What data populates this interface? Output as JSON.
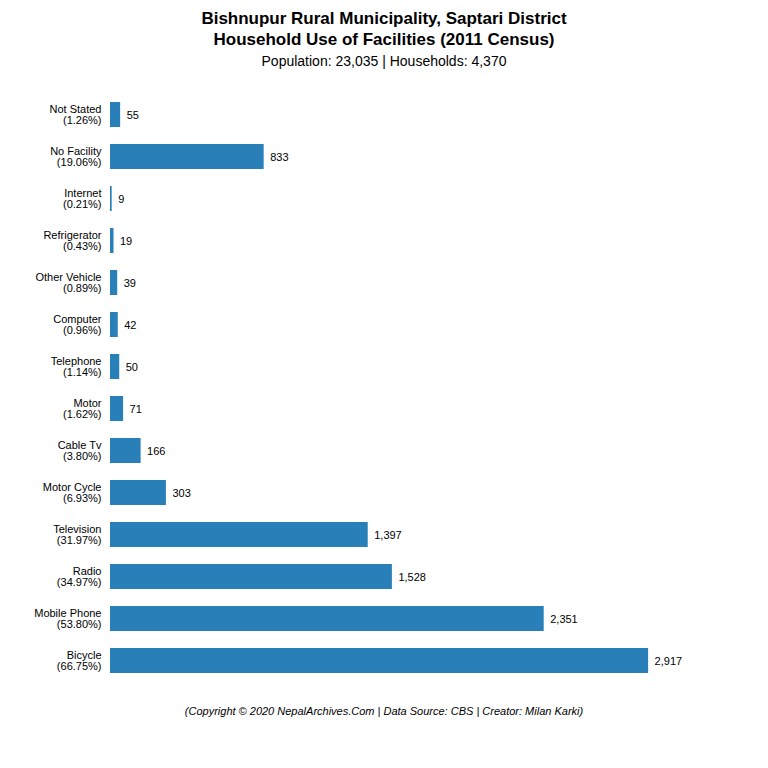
{
  "chart_data": {
    "type": "bar",
    "orientation": "horizontal",
    "title": "Bishnupur Rural Municipality, Saptari District\nHousehold Use of Facilities (2011 Census)",
    "subtitle": "Population: 23,035 | Households: 4,370",
    "annotations": [
      "(Copyright © 2020 NepalArchives.Com | Data Source: CBS | Creator: Milan Karki)"
    ],
    "categories": [
      "Bicycle\n(66.75%)",
      "Mobile Phone\n(53.80%)",
      "Radio\n(34.97%)",
      "Television\n(31.97%)",
      "Motor Cycle\n(6.93%)",
      "Cable Tv\n(3.80%)",
      "Motor\n(1.62%)",
      "Telephone\n(1.14%)",
      "Computer\n(0.96%)",
      "Other Vehicle\n(0.89%)",
      "Refrigerator\n(0.43%)",
      "Internet\n(0.21%)",
      "No Facility\n(19.06%)",
      "Not Stated\n(1.26%)"
    ],
    "values": [
      2917,
      2351,
      1528,
      1397,
      303,
      166,
      71,
      50,
      42,
      39,
      19,
      9,
      833,
      55
    ],
    "value_labels": [
      "2,917",
      "2,351",
      "1,528",
      "1,397",
      "303",
      "166",
      "71",
      "50",
      "42",
      "39",
      "19",
      "9",
      "833",
      "55"
    ],
    "data_labels": true,
    "color": "#2980b9",
    "xlim": [
      0,
      3350
    ],
    "tick_labels": "y",
    "grid": false
  }
}
